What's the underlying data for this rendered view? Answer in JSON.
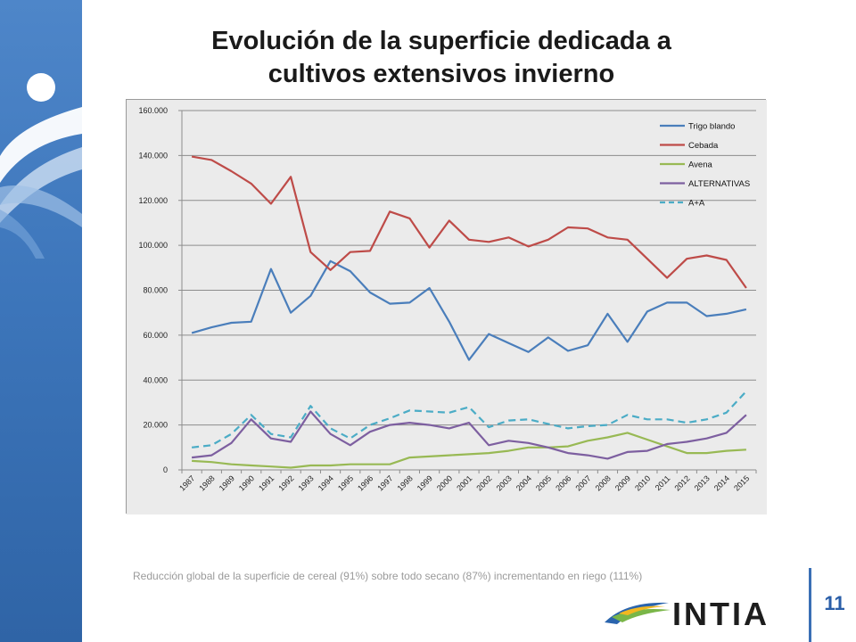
{
  "slide": {
    "title_line1": "Evolución de la superficie dedicada a",
    "title_line2": "cultivos extensivos invierno",
    "caption": "Reducción global de la superficie de cereal (91%) sobre todo secano (87%) incrementando en riego (111%)",
    "page_number": "11",
    "logo_text": "INTIA"
  },
  "colors": {
    "sidebar": "#3d76bb",
    "trigo": "#4a7ebb",
    "cebada": "#be4b48",
    "avena": "#98b954",
    "alternativas": "#7d5fa0",
    "aa": "#4bacc6"
  },
  "chart_data": {
    "type": "line",
    "title": "",
    "xlabel": "",
    "ylabel": "",
    "ylim": [
      0,
      160000
    ],
    "yticks": [
      0,
      20000,
      40000,
      60000,
      80000,
      100000,
      120000,
      140000,
      160000
    ],
    "ytick_labels": [
      "0",
      "20.000",
      "40.000",
      "60.000",
      "80.000",
      "100.000",
      "120.000",
      "140.000",
      "160.000"
    ],
    "grid": true,
    "legend_position": "top-right",
    "x": [
      "1987",
      "1988",
      "1989",
      "1990",
      "1991",
      "1992",
      "1993",
      "1994",
      "1995",
      "1996",
      "1997",
      "1998",
      "1999",
      "2000",
      "2001",
      "2002",
      "2003",
      "2004",
      "2005",
      "2006",
      "2007",
      "2008",
      "2009",
      "2010",
      "2011",
      "2012",
      "2013",
      "2014",
      "2015"
    ],
    "series": [
      {
        "name": "Trigo blando",
        "color": "#4a7ebb",
        "dashed": false,
        "values": [
          61000,
          63500,
          65500,
          66000,
          89500,
          70000,
          77500,
          93000,
          88500,
          79000,
          74000,
          74500,
          81000,
          66000,
          49000,
          60500,
          56500,
          52500,
          59000,
          53000,
          55500,
          69500,
          57000,
          70500,
          74500,
          74500,
          68500,
          69500,
          71500
        ]
      },
      {
        "name": "Cebada",
        "color": "#be4b48",
        "dashed": false,
        "values": [
          139500,
          138000,
          133000,
          127500,
          118500,
          130500,
          97000,
          89000,
          97000,
          97500,
          115000,
          112000,
          99000,
          111000,
          102500,
          101500,
          103500,
          99500,
          102500,
          108000,
          107500,
          103500,
          102500,
          94000,
          85500,
          94000,
          95500,
          93500,
          81000
        ]
      },
      {
        "name": "Avena",
        "color": "#98b954",
        "dashed": false,
        "values": [
          4000,
          3500,
          2500,
          2000,
          1500,
          1000,
          2000,
          2000,
          2500,
          2500,
          2500,
          5500,
          6000,
          6500,
          7000,
          7500,
          8500,
          10000,
          10000,
          10500,
          13000,
          14500,
          16500,
          13500,
          10500,
          7500,
          7500,
          8500,
          9000
        ]
      },
      {
        "name": "ALTERNATIVAS",
        "color": "#7d5fa0",
        "dashed": false,
        "values": [
          5500,
          6500,
          12000,
          22500,
          14000,
          12500,
          26000,
          16000,
          11000,
          17000,
          20000,
          21000,
          20000,
          18500,
          21000,
          11000,
          13000,
          12000,
          10000,
          7500,
          6500,
          5000,
          8000,
          8500,
          11500,
          12500,
          14000,
          16500,
          24500
        ]
      },
      {
        "name": "A+A",
        "color": "#4bacc6",
        "dashed": true,
        "values": [
          10000,
          11000,
          16000,
          24500,
          16000,
          14500,
          28500,
          18500,
          14000,
          20000,
          23000,
          26500,
          26000,
          25500,
          28000,
          19000,
          22000,
          22500,
          20500,
          18500,
          19500,
          20000,
          24500,
          22500,
          22500,
          21000,
          22500,
          25500,
          35000
        ]
      }
    ]
  }
}
